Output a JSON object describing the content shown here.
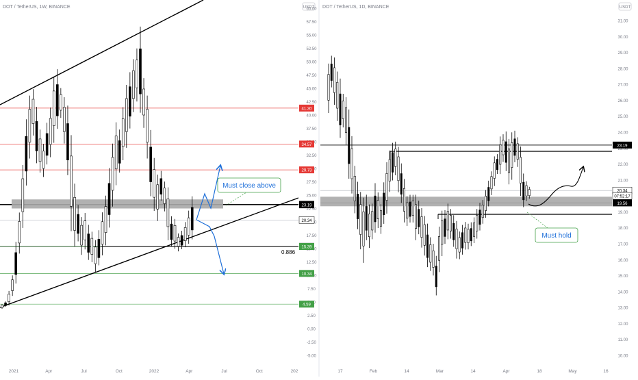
{
  "chart_data": [
    {
      "type": "candlestick",
      "symbol_label": "DOT / TetherUS, 1W, BINANCE",
      "currency_badge": "USDT",
      "y_ticks": [
        "60.00",
        "57.50",
        "55.00",
        "52.50",
        "50.00",
        "47.50",
        "45.00",
        "42.50",
        "40.00",
        "37.50",
        "35.00",
        "32.50",
        "30.00",
        "27.50",
        "25.00",
        "22.50",
        "20.00",
        "17.50",
        "15.00",
        "12.50",
        "10.00",
        "7.50",
        "5.00",
        "2.50",
        "0.00",
        "-2.50",
        "-5.00"
      ],
      "x_ticks": [
        "2021",
        "Apr",
        "Jul",
        "Oct",
        "2022",
        "Apr",
        "Jul",
        "Oct",
        "202"
      ],
      "ylim": [
        -5.5,
        61
      ],
      "price_lines": [
        {
          "label": "41.30",
          "value": 41.3,
          "color": "#e53935",
          "style": "red"
        },
        {
          "label": "34.57",
          "value": 34.57,
          "color": "#e53935",
          "style": "red"
        },
        {
          "label": "29.73",
          "value": 29.73,
          "color": "#e53935",
          "style": "red"
        },
        {
          "label": "23.27",
          "value": 23.27,
          "color": "#000000",
          "style": "black"
        },
        {
          "label": "23.19",
          "value": 23.19,
          "color": "#000000",
          "style": "black"
        },
        {
          "label": "20.34",
          "value": 20.34,
          "color": "#ffffff",
          "style": "white"
        },
        {
          "label": "15.40",
          "value": 15.4,
          "color": "#000000",
          "style": "black"
        },
        {
          "label": "15.39",
          "value": 15.39,
          "color": "#43a047",
          "style": "green"
        },
        {
          "label": "10.34",
          "value": 10.34,
          "color": "#43a047",
          "style": "green"
        },
        {
          "label": "4.59",
          "value": 4.59,
          "color": "#43a047",
          "style": "green"
        }
      ],
      "fib_label": "0.886",
      "annotation": "Must close above",
      "zone": [
        22.5,
        24.2
      ],
      "candles": [
        [
          3.8,
          4.5
        ],
        [
          4.2,
          5.0
        ],
        [
          4.6,
          6.8
        ],
        [
          6.5,
          9.6
        ],
        [
          9.2,
          15.5
        ],
        [
          14.8,
          21.0
        ],
        [
          20.0,
          29.5
        ],
        [
          28.0,
          38.0
        ],
        [
          33.0,
          42.5
        ],
        [
          37.0,
          44.0
        ],
        [
          32.0,
          40.5
        ],
        [
          30.0,
          36.5
        ],
        [
          29.0,
          34.0
        ],
        [
          31.5,
          37.8
        ],
        [
          33.0,
          40.5
        ],
        [
          36.0,
          46.0
        ],
        [
          38.5,
          47.5
        ],
        [
          40.0,
          44.5
        ],
        [
          35.5,
          42.5
        ],
        [
          30.0,
          40.5
        ],
        [
          20.0,
          34.5
        ],
        [
          16.5,
          26.0
        ],
        [
          17.0,
          22.5
        ],
        [
          14.5,
          20.2
        ],
        [
          15.5,
          21.0
        ],
        [
          13.5,
          18.8
        ],
        [
          13.0,
          17.6
        ],
        [
          11.2,
          16.0
        ],
        [
          12.5,
          17.8
        ],
        [
          14.5,
          21.0
        ],
        [
          16.5,
          24.0
        ],
        [
          20.0,
          29.0
        ],
        [
          24.0,
          33.5
        ],
        [
          28.0,
          37.5
        ],
        [
          30.0,
          36.5
        ],
        [
          32.5,
          40.5
        ],
        [
          35.0,
          44.5
        ],
        [
          38.5,
          47.0
        ],
        [
          41.5,
          49.5
        ],
        [
          43.5,
          51.5
        ],
        [
          42.0,
          55.0
        ],
        [
          38.5,
          46.0
        ],
        [
          33.0,
          42.5
        ],
        [
          26.0,
          36.0
        ],
        [
          23.0,
          31.0
        ],
        [
          21.0,
          28.0
        ],
        [
          24.5,
          29.0
        ],
        [
          22.5,
          27.0
        ],
        [
          17.5,
          25.5
        ],
        [
          16.0,
          20.5
        ],
        [
          15.5,
          20.0
        ],
        [
          14.8,
          17.5
        ],
        [
          15.2,
          18.0
        ],
        [
          15.7,
          19.5
        ],
        [
          16.5,
          21.5
        ],
        [
          17.5,
          24.0
        ]
      ]
    },
    {
      "type": "candlestick",
      "symbol_label": "DOT / TetherUS, 1D, BINANCE",
      "currency_badge": "USDT",
      "y_ticks": [
        "31.00",
        "30.00",
        "29.00",
        "28.00",
        "27.00",
        "26.00",
        "25.00",
        "24.00",
        "23.00",
        "22.00",
        "21.00",
        "20.00",
        "19.00",
        "18.00",
        "17.00",
        "16.00",
        "15.00",
        "14.00",
        "13.00",
        "12.00",
        "11.00",
        "10.00"
      ],
      "x_ticks": [
        "17",
        "Feb",
        "14",
        "Mar",
        "14",
        "Apr",
        "18",
        "May",
        "16"
      ],
      "ylim": [
        10.5,
        31.5
      ],
      "price_lines": [
        {
          "label": "23.19",
          "value": 23.19,
          "color": "#000000",
          "style": "black"
        },
        {
          "label": "20.34",
          "value": 20.34,
          "color": "#ffffff",
          "style": "white"
        },
        {
          "label": "07:52:17",
          "value": 20.0,
          "color": "#ffffff",
          "style": "white"
        },
        {
          "label": "19.56",
          "value": 19.56,
          "color": "#000000",
          "style": "black"
        }
      ],
      "annotation": "Must hold",
      "zone": [
        19.35,
        19.95
      ],
      "candles": [
        [
          25.5,
          28.0
        ],
        [
          27.0,
          28.6
        ],
        [
          26.0,
          28.4
        ],
        [
          25.0,
          27.5
        ],
        [
          24.0,
          27.0
        ],
        [
          24.5,
          26.2
        ],
        [
          23.5,
          25.9
        ],
        [
          21.5,
          25.0
        ],
        [
          20.5,
          23.4
        ],
        [
          19.2,
          21.6
        ],
        [
          18.2,
          20.6
        ],
        [
          17.0,
          19.9
        ],
        [
          16.2,
          19.5
        ],
        [
          17.5,
          19.8
        ],
        [
          17.0,
          19.2
        ],
        [
          17.5,
          19.3
        ],
        [
          18.0,
          20.5
        ],
        [
          18.2,
          20.0
        ],
        [
          17.8,
          19.3
        ],
        [
          18.5,
          20.6
        ],
        [
          19.2,
          21.8
        ],
        [
          20.5,
          22.6
        ],
        [
          21.2,
          23.1
        ],
        [
          21.5,
          23.2
        ],
        [
          20.5,
          22.8
        ],
        [
          19.8,
          21.8
        ],
        [
          18.6,
          20.8
        ],
        [
          18.3,
          19.8
        ],
        [
          18.5,
          19.9
        ],
        [
          18.5,
          19.9
        ],
        [
          17.5,
          19.8
        ],
        [
          17.8,
          19.5
        ],
        [
          17.0,
          19.0
        ],
        [
          16.5,
          18.5
        ],
        [
          15.8,
          18.0
        ],
        [
          15.5,
          17.2
        ],
        [
          15.2,
          16.8
        ],
        [
          14.0,
          16.0
        ],
        [
          15.5,
          17.8
        ],
        [
          16.5,
          18.8
        ],
        [
          17.2,
          18.9
        ],
        [
          17.5,
          19.3
        ],
        [
          17.5,
          19.0
        ],
        [
          17.0,
          18.6
        ],
        [
          16.3,
          18.2
        ],
        [
          16.2,
          17.6
        ],
        [
          16.5,
          18.0
        ],
        [
          16.8,
          18.2
        ],
        [
          16.8,
          18.1
        ],
        [
          17.0,
          18.2
        ],
        [
          17.2,
          18.5
        ],
        [
          17.5,
          19.0
        ],
        [
          18.0,
          19.4
        ],
        [
          18.4,
          19.6
        ],
        [
          18.8,
          20.2
        ],
        [
          19.5,
          20.8
        ],
        [
          20.2,
          21.4
        ],
        [
          20.8,
          22.3
        ],
        [
          21.5,
          22.5
        ],
        [
          21.6,
          23.5
        ],
        [
          22.3,
          23.7
        ],
        [
          21.8,
          23.8
        ],
        [
          21.0,
          23.3
        ],
        [
          21.3,
          23.7
        ],
        [
          22.3,
          23.9
        ],
        [
          22.0,
          23.5
        ],
        [
          20.3,
          22.8
        ],
        [
          19.5,
          21.2
        ],
        [
          19.8,
          20.8
        ],
        [
          19.9,
          20.5
        ]
      ]
    }
  ]
}
